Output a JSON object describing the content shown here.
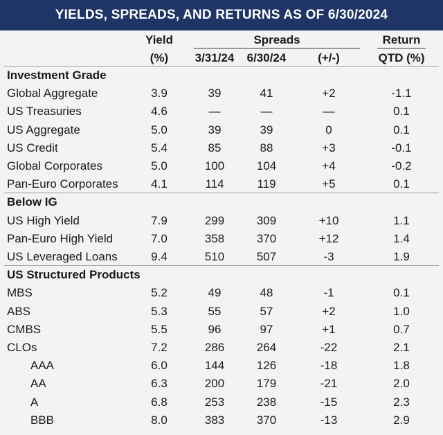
{
  "title": "YIELDS, SPREADS, AND RETURNS AS OF 6/30/2024",
  "headers": {
    "yield_top": "Yield",
    "yield_bottom": "(%)",
    "spreads": "Spreads",
    "spread_q1": "3/31/24",
    "spread_q2": "6/30/24",
    "spread_change": "(+/-)",
    "return_top": "Return",
    "return_bottom": "QTD (%)"
  },
  "sections": [
    {
      "label": "Investment Grade",
      "rows": [
        {
          "name": "Global Aggregate",
          "yield": "3.9",
          "s1": "39",
          "s2": "41",
          "chg": "+2",
          "ret": "-1.1"
        },
        {
          "name": "US Treasuries",
          "yield": "4.6",
          "s1": "—",
          "s2": "—",
          "chg": "—",
          "ret": "0.1"
        },
        {
          "name": "US Aggregate",
          "yield": "5.0",
          "s1": "39",
          "s2": "39",
          "chg": "0",
          "ret": "0.1"
        },
        {
          "name": "US Credit",
          "yield": "5.4",
          "s1": "85",
          "s2": "88",
          "chg": "+3",
          "ret": "-0.1"
        },
        {
          "name": "Global Corporates",
          "yield": "5.0",
          "s1": "100",
          "s2": "104",
          "chg": "+4",
          "ret": "-0.2"
        },
        {
          "name": "Pan-Euro Corporates",
          "yield": "4.1",
          "s1": "114",
          "s2": "119",
          "chg": "+5",
          "ret": "0.1"
        }
      ]
    },
    {
      "label": "Below IG",
      "rows": [
        {
          "name": "US High Yield",
          "yield": "7.9",
          "s1": "299",
          "s2": "309",
          "chg": "+10",
          "ret": "1.1"
        },
        {
          "name": "Pan-Euro High Yield",
          "yield": "7.0",
          "s1": "358",
          "s2": "370",
          "chg": "+12",
          "ret": "1.4"
        },
        {
          "name": "US Leveraged Loans",
          "yield": "9.4",
          "s1": "510",
          "s2": "507",
          "chg": "-3",
          "ret": "1.9"
        }
      ]
    },
    {
      "label": "US Structured Products",
      "rows": [
        {
          "name": "MBS",
          "yield": "5.2",
          "s1": "49",
          "s2": "48",
          "chg": "-1",
          "ret": "0.1"
        },
        {
          "name": "ABS",
          "yield": "5.3",
          "s1": "55",
          "s2": "57",
          "chg": "+2",
          "ret": "1.0"
        },
        {
          "name": "CMBS",
          "yield": "5.5",
          "s1": "96",
          "s2": "97",
          "chg": "+1",
          "ret": "0.7"
        },
        {
          "name": "CLOs",
          "yield": "7.2",
          "s1": "286",
          "s2": "264",
          "chg": "-22",
          "ret": "2.1"
        },
        {
          "name": "AAA",
          "indent": true,
          "yield": "6.0",
          "s1": "144",
          "s2": "126",
          "chg": "-18",
          "ret": "1.8"
        },
        {
          "name": "AA",
          "indent": true,
          "yield": "6.3",
          "s1": "200",
          "s2": "179",
          "chg": "-21",
          "ret": "2.0"
        },
        {
          "name": "A",
          "indent": true,
          "yield": "6.8",
          "s1": "253",
          "s2": "238",
          "chg": "-15",
          "ret": "2.3"
        },
        {
          "name": "BBB",
          "indent": true,
          "yield": "8.0",
          "s1": "383",
          "s2": "370",
          "chg": "-13",
          "ret": "2.9"
        }
      ]
    }
  ]
}
